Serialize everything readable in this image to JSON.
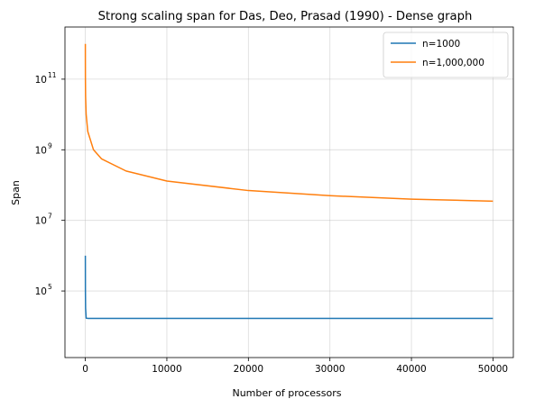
{
  "chart_data": {
    "type": "line",
    "title": "Strong scaling span for Das, Deo, Prasad  (1990) - Dense graph",
    "xlabel": "Number of processors",
    "ylabel": "Span",
    "yscale": "log",
    "xlim": [
      -2500,
      52500
    ],
    "ylim": [
      1300,
      3000000000000
    ],
    "x_ticks": [
      0,
      10000,
      20000,
      30000,
      40000,
      50000
    ],
    "x_tick_labels": [
      "0",
      "10000",
      "20000",
      "30000",
      "40000",
      "50000"
    ],
    "y_ticks": [
      {
        "value": 100000,
        "base": "10",
        "exp": "5"
      },
      {
        "value": 10000000,
        "base": "10",
        "exp": "7"
      },
      {
        "value": 1000000000,
        "base": "10",
        "exp": "9"
      },
      {
        "value": 100000000000,
        "base": "10",
        "exp": "11"
      }
    ],
    "grid": true,
    "legend_position": "top-right",
    "series": [
      {
        "name": "n=1000",
        "color": "#1f77b4",
        "x": [
          1,
          10,
          30,
          100,
          300,
          1000,
          5000,
          20000,
          50000
        ],
        "y": [
          1000000,
          100000,
          33000,
          17000,
          16800,
          16800,
          16800,
          16800,
          16800
        ]
      },
      {
        "name": "n=1,000,000",
        "color": "#ff7f0e",
        "x": [
          1,
          3,
          10,
          30,
          100,
          300,
          1000,
          2000,
          5000,
          10000,
          20000,
          30000,
          40000,
          50000
        ],
        "y": [
          1000000000000,
          333000000000,
          100000000000,
          33000000000,
          10000000000,
          3300000000,
          1000000000,
          550000000,
          250000000,
          130000000,
          70000000,
          50000000,
          40000000,
          35000000
        ]
      }
    ]
  }
}
